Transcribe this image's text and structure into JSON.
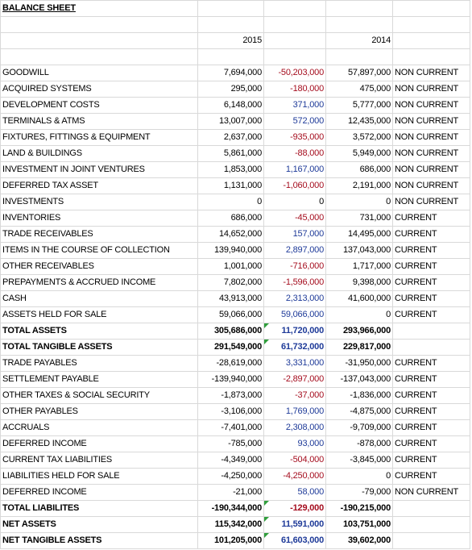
{
  "title": "BALANCE SHEET",
  "table": {
    "columns": [
      "2015",
      "2014"
    ],
    "rows": [
      [
        "GOODWILL",
        "7,694,000",
        "-50,203,000",
        "57,897,000",
        "NON CURRENT"
      ],
      [
        "ACQUIRED SYSTEMS",
        "295,000",
        "-180,000",
        "475,000",
        "NON CURRENT"
      ],
      [
        "DEVELOPMENT COSTS",
        "6,148,000",
        "371,000",
        "5,777,000",
        "NON CURRENT"
      ],
      [
        "TERMINALS & ATMS",
        "13,007,000",
        "572,000",
        "12,435,000",
        "NON CURRENT"
      ],
      [
        "FIXTURES, FITTINGS & EQUIPMENT",
        "2,637,000",
        "-935,000",
        "3,572,000",
        "NON CURRENT"
      ],
      [
        "LAND & BUILDINGS",
        "5,861,000",
        "-88,000",
        "5,949,000",
        "NON CURRENT"
      ],
      [
        "INVESTMENT IN JOINT VENTURES",
        "1,853,000",
        "1,167,000",
        "686,000",
        "NON CURRENT"
      ],
      [
        "DEFERRED TAX ASSET",
        "1,131,000",
        "-1,060,000",
        "2,191,000",
        "NON CURRENT"
      ],
      [
        "INVESTMENTS",
        "0",
        "0",
        "0",
        "NON CURRENT"
      ],
      [
        "INVENTORIES",
        "686,000",
        "-45,000",
        "731,000",
        "CURRENT"
      ],
      [
        "TRADE RECEIVABLES",
        "14,652,000",
        "157,000",
        "14,495,000",
        "CURRENT"
      ],
      [
        "ITEMS IN THE COURSE OF COLLECTION",
        "139,940,000",
        "2,897,000",
        "137,043,000",
        "CURRENT"
      ],
      [
        "OTHER RECEIVABLES",
        "1,001,000",
        "-716,000",
        "1,717,000",
        "CURRENT"
      ],
      [
        "PREPAYMENTS & ACCRUED INCOME",
        "7,802,000",
        "-1,596,000",
        "9,398,000",
        "CURRENT"
      ],
      [
        "CASH",
        "43,913,000",
        "2,313,000",
        "41,600,000",
        "CURRENT"
      ],
      [
        "ASSETS HELD FOR SALE",
        "59,066,000",
        "59,066,000",
        "0",
        "CURRENT"
      ],
      [
        "TOTAL ASSETS",
        "305,686,000",
        "11,720,000",
        "293,966,000",
        null
      ],
      [
        "TOTAL TANGIBLE ASSETS",
        "291,549,000",
        "61,732,000",
        "229,817,000",
        null
      ],
      [
        "TRADE PAYABLES",
        "-28,619,000",
        "3,331,000",
        "-31,950,000",
        "CURRENT"
      ],
      [
        "SETTLEMENT PAYABLE",
        "-139,940,000",
        "-2,897,000",
        "-137,043,000",
        "CURRENT"
      ],
      [
        "OTHER TAXES & SOCIAL SECURITY",
        "-1,873,000",
        "-37,000",
        "-1,836,000",
        "CURRENT"
      ],
      [
        "OTHER PAYABLES",
        "-3,106,000",
        "1,769,000",
        "-4,875,000",
        "CURRENT"
      ],
      [
        "ACCRUALS",
        "-7,401,000",
        "2,308,000",
        "-9,709,000",
        "CURRENT"
      ],
      [
        "DEFERRED INCOME",
        "-785,000",
        "93,000",
        "-878,000",
        "CURRENT"
      ],
      [
        "CURRENT TAX LIABILITIES",
        "-4,349,000",
        "-504,000",
        "-3,845,000",
        "CURRENT"
      ],
      [
        "LIABILITIES HELD FOR SALE",
        "-4,250,000",
        "-4,250,000",
        "0",
        "CURRENT"
      ],
      [
        "DEFERRED INCOME",
        "-21,000",
        "58,000",
        "-79,000",
        "NON CURRENT"
      ],
      [
        "TOTAL LIABILITES",
        "-190,344,000",
        "-129,000",
        "-190,215,000",
        null
      ],
      [
        "NET ASSETS",
        "115,342,000",
        "11,591,000",
        "103,751,000",
        null
      ],
      [
        "NET TANGIBLE ASSETS",
        "101,205,000",
        "61,603,000",
        "39,602,000",
        null
      ]
    ]
  }
}
